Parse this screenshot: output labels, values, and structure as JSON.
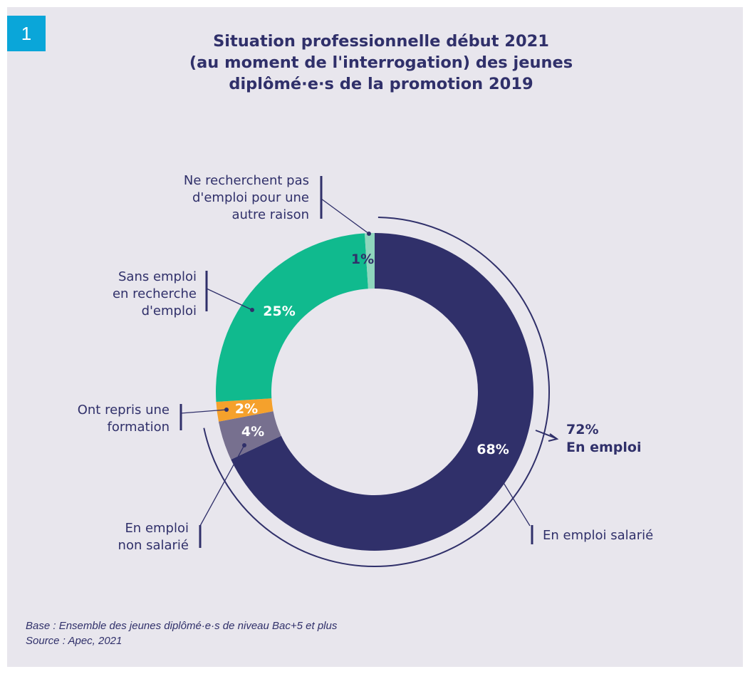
{
  "figure_number": "1",
  "title_lines": [
    "Situation professionnelle début 2021",
    "(au moment de l'interrogation) des jeunes",
    "diplômé·e·s de la promotion 2019"
  ],
  "chart_data": {
    "type": "pie",
    "variant": "donut",
    "title": "Situation professionnelle début 2021 (au moment de l'interrogation) des jeunes diplômé·e·s de la promotion 2019",
    "slices": [
      {
        "label": "En emploi salarié",
        "value": 68,
        "value_label": "68%",
        "color": "#30306a"
      },
      {
        "label": "En emploi non salarié",
        "value": 4,
        "value_label": "4%",
        "color": "#77708f"
      },
      {
        "label": "Ont repris une formation",
        "value": 2,
        "value_label": "2%",
        "color": "#f5a12c"
      },
      {
        "label": "Sans emploi en recherche d'emploi",
        "value": 25,
        "value_label": "25%",
        "color": "#10ba8e"
      },
      {
        "label": "Ne recherchent pas d'emploi pour une autre raison",
        "value": 1,
        "value_label": "1%",
        "color": "#8fd6bd"
      }
    ],
    "group": {
      "value_label": "72%",
      "label": "En emploi"
    }
  },
  "labels": {
    "salarie": [
      "En emploi salarié"
    ],
    "non_salarie": [
      "En emploi",
      "non salarié"
    ],
    "formation": [
      "Ont repris une",
      "formation"
    ],
    "recherche": [
      "Sans emploi",
      "en recherche",
      "d'emploi"
    ],
    "autre": [
      "Ne recherchent pas",
      "d'emploi pour une",
      "autre raison"
    ],
    "group_value": "72%",
    "group_label": "En emploi"
  },
  "footnote": [
    "Base : Ensemble des jeunes diplômé·e·s de niveau Bac+5 et plus",
    "Source : Apec, 2021"
  ]
}
